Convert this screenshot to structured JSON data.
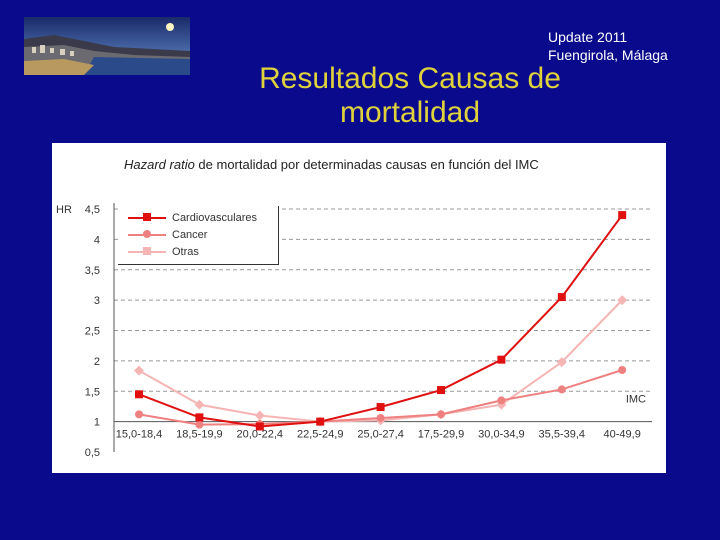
{
  "header": {
    "update_line1": "Update 2011",
    "update_line2": "Fuengirola, Málaga",
    "title_line1": "Resultados Causas de",
    "title_line2": "mortalidad"
  },
  "chart_data": {
    "type": "line",
    "title_italic": "Hazard ratio",
    "title_rest": " de mortalidad por determinadas causas en función del IMC",
    "ylabel": "HR",
    "xlabel": "IMC",
    "ylim": [
      0.5,
      4.5
    ],
    "yticks": [
      "0,5",
      "1",
      "1,5",
      "2",
      "2,5",
      "3",
      "3,5",
      "4",
      "4,5"
    ],
    "grid": true,
    "legend_position": "top-left",
    "categories": [
      "15,0-18,4",
      "18,5-19,9",
      "20,0-22,4",
      "22,5-24,9",
      "25,0-27,4",
      "17,5-29,9",
      "30,0-34,9",
      "35,5-39,4",
      "40-49,9"
    ],
    "series": [
      {
        "name": "Cardiovasculares",
        "color": "#e01010",
        "marker": "square",
        "values": [
          1.45,
          1.07,
          0.92,
          1.0,
          1.24,
          1.52,
          2.02,
          3.05,
          4.4
        ]
      },
      {
        "name": "Cancer",
        "color": "#ee8080",
        "marker": "circle",
        "values": [
          1.12,
          0.95,
          0.96,
          1.0,
          1.06,
          1.12,
          1.35,
          1.53,
          1.85
        ]
      },
      {
        "name": "Otras",
        "color": "#f5b5b5",
        "marker": "diamond",
        "values": [
          1.84,
          1.28,
          1.1,
          1.0,
          1.02,
          1.12,
          1.28,
          1.98,
          3.0
        ]
      }
    ]
  }
}
